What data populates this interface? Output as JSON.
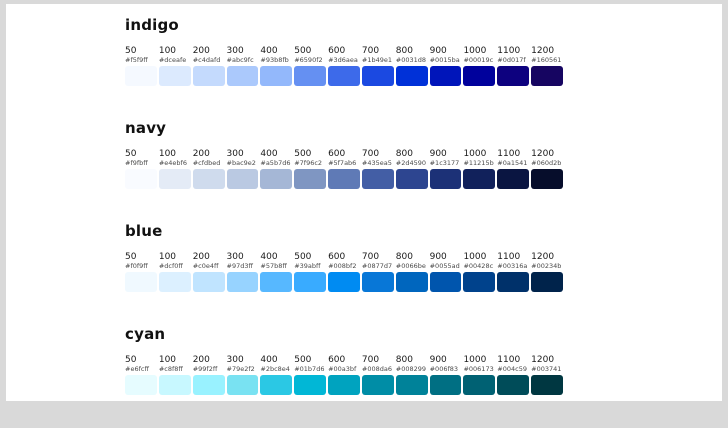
{
  "colors": {
    "canvas_bg": "#d9d9d9",
    "page_bg": "#ffffff",
    "title_color": "#111111",
    "step_label_color": "#1a1a1a",
    "hex_label_color": "#4a4a4a"
  },
  "palettes": [
    {
      "name": "indigo",
      "swatches": [
        {
          "step": "50",
          "hex": "#f5f9ff"
        },
        {
          "step": "100",
          "hex": "#dceafe"
        },
        {
          "step": "200",
          "hex": "#c4dafd"
        },
        {
          "step": "300",
          "hex": "#abc9fc"
        },
        {
          "step": "400",
          "hex": "#93b8fb"
        },
        {
          "step": "500",
          "hex": "#6590f2"
        },
        {
          "step": "600",
          "hex": "#3d6aea"
        },
        {
          "step": "700",
          "hex": "#1b49e1"
        },
        {
          "step": "800",
          "hex": "#0031d8"
        },
        {
          "step": "900",
          "hex": "#0015ba"
        },
        {
          "step": "1000",
          "hex": "#00019c"
        },
        {
          "step": "1100",
          "hex": "#0d017f"
        },
        {
          "step": "1200",
          "hex": "#160561"
        }
      ]
    },
    {
      "name": "navy",
      "swatches": [
        {
          "step": "50",
          "hex": "#f9fbff"
        },
        {
          "step": "100",
          "hex": "#e4ebf6"
        },
        {
          "step": "200",
          "hex": "#cfdbed"
        },
        {
          "step": "300",
          "hex": "#bac9e2"
        },
        {
          "step": "400",
          "hex": "#a5b7d6"
        },
        {
          "step": "500",
          "hex": "#7f96c2"
        },
        {
          "step": "600",
          "hex": "#5f7ab6"
        },
        {
          "step": "700",
          "hex": "#435ea5"
        },
        {
          "step": "800",
          "hex": "#2d4590"
        },
        {
          "step": "900",
          "hex": "#1c3177"
        },
        {
          "step": "1000",
          "hex": "#11215b"
        },
        {
          "step": "1100",
          "hex": "#0a1541"
        },
        {
          "step": "1200",
          "hex": "#060d2b"
        }
      ]
    },
    {
      "name": "blue",
      "swatches": [
        {
          "step": "50",
          "hex": "#f0f9ff"
        },
        {
          "step": "100",
          "hex": "#dcf0ff"
        },
        {
          "step": "200",
          "hex": "#c0e4ff"
        },
        {
          "step": "300",
          "hex": "#97d3ff"
        },
        {
          "step": "400",
          "hex": "#57b8ff"
        },
        {
          "step": "500",
          "hex": "#39abff"
        },
        {
          "step": "600",
          "hex": "#008bf2"
        },
        {
          "step": "700",
          "hex": "#0877d7"
        },
        {
          "step": "800",
          "hex": "#0066be"
        },
        {
          "step": "900",
          "hex": "#0055ad"
        },
        {
          "step": "1000",
          "hex": "#00428c"
        },
        {
          "step": "1100",
          "hex": "#00316a"
        },
        {
          "step": "1200",
          "hex": "#00234b"
        }
      ]
    },
    {
      "name": "cyan",
      "swatches": [
        {
          "step": "50",
          "hex": "#e6fcff"
        },
        {
          "step": "100",
          "hex": "#c8f8ff"
        },
        {
          "step": "200",
          "hex": "#99f2ff"
        },
        {
          "step": "300",
          "hex": "#79e2f2"
        },
        {
          "step": "400",
          "hex": "#2bc8e4"
        },
        {
          "step": "500",
          "hex": "#01b7d6"
        },
        {
          "step": "600",
          "hex": "#00a3bf"
        },
        {
          "step": "700",
          "hex": "#008da6"
        },
        {
          "step": "800",
          "hex": "#008299"
        },
        {
          "step": "900",
          "hex": "#006f83"
        },
        {
          "step": "1000",
          "hex": "#006173"
        },
        {
          "step": "1100",
          "hex": "#004c59"
        },
        {
          "step": "1200",
          "hex": "#003741"
        }
      ]
    }
  ]
}
